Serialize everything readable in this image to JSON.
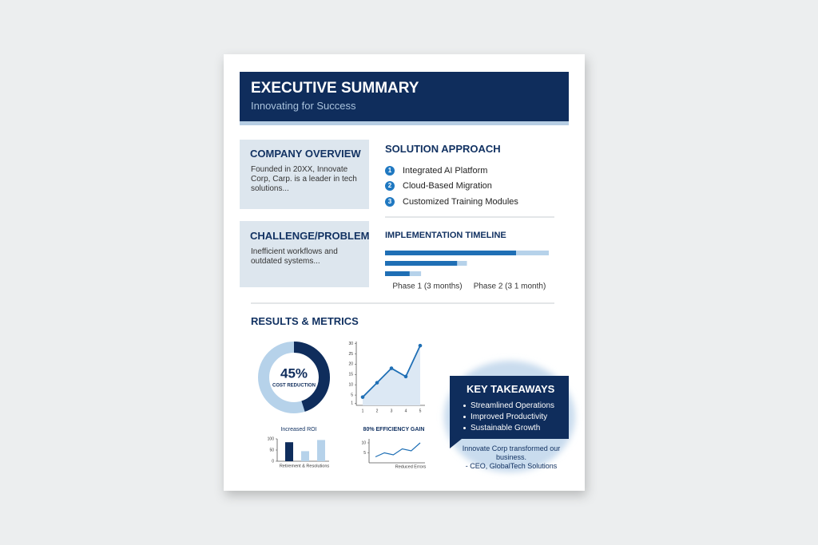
{
  "header": {
    "title": "EXECUTIVE SUMMARY",
    "subtitle": "Innovating for Success"
  },
  "company_overview": {
    "title": "COMPANY OVERVIEW",
    "text": "Founded in 20XX, Innovate Corp, Carp. is a leader in tech solutions..."
  },
  "challenge": {
    "title": "CHALLENGE/PROBLEM",
    "text": "Inefficient workflows and outdated systems..."
  },
  "solution": {
    "title": "SOLUTION APPROACH",
    "items": [
      {
        "number": 1,
        "label": "Integrated AI Platform"
      },
      {
        "number": 2,
        "label": "Cloud-Based Migration"
      },
      {
        "number": 3,
        "label": "Customized Training Modules"
      }
    ]
  },
  "timeline": {
    "title": "IMPLEMENTATION TIMELINE",
    "xlim": [
      0,
      100
    ],
    "bars": [
      {
        "done": 80,
        "planned": 100
      },
      {
        "done": 44,
        "planned": 50
      },
      {
        "done": 15,
        "planned": 22
      }
    ],
    "labels": [
      "Phase 1 (3 months)",
      "Phase 2 (3 1 month)"
    ]
  },
  "results": {
    "title": "RESULTS & METRICS",
    "donut": {
      "value": 45,
      "value_label": "45%",
      "label": "COST REDUCTION"
    },
    "line_chart": {
      "categories": [
        "1",
        "2",
        "3",
        "4",
        "5"
      ],
      "values": [
        4,
        11,
        18,
        14,
        29
      ],
      "ylim": [
        0,
        31
      ],
      "yticks": [
        1,
        5,
        10,
        15,
        20,
        25,
        30
      ]
    },
    "roi_chart": {
      "title": "Increased ROI",
      "values": [
        85,
        45,
        95
      ],
      "ylim": [
        0,
        100
      ],
      "yticks": [
        0,
        50,
        100
      ],
      "xlabel": "Retirement & Resolutions"
    },
    "efficiency_chart": {
      "title": "80% EFFICIENCY GAIN",
      "values": [
        3,
        5,
        4,
        7,
        6,
        10
      ],
      "ylim": [
        0,
        12
      ],
      "yticks": [
        5,
        10
      ],
      "xlabel": "Reduced Errors"
    }
  },
  "takeaways": {
    "title": "KEY TAKEAWAYS",
    "items": [
      "Streamlined Operations",
      "Improved Productivity",
      "Sustainable Growth"
    ],
    "quote": "Innovate Corp transformed our business.",
    "attribution": "- CEO, GlobalTech Solutions"
  }
}
